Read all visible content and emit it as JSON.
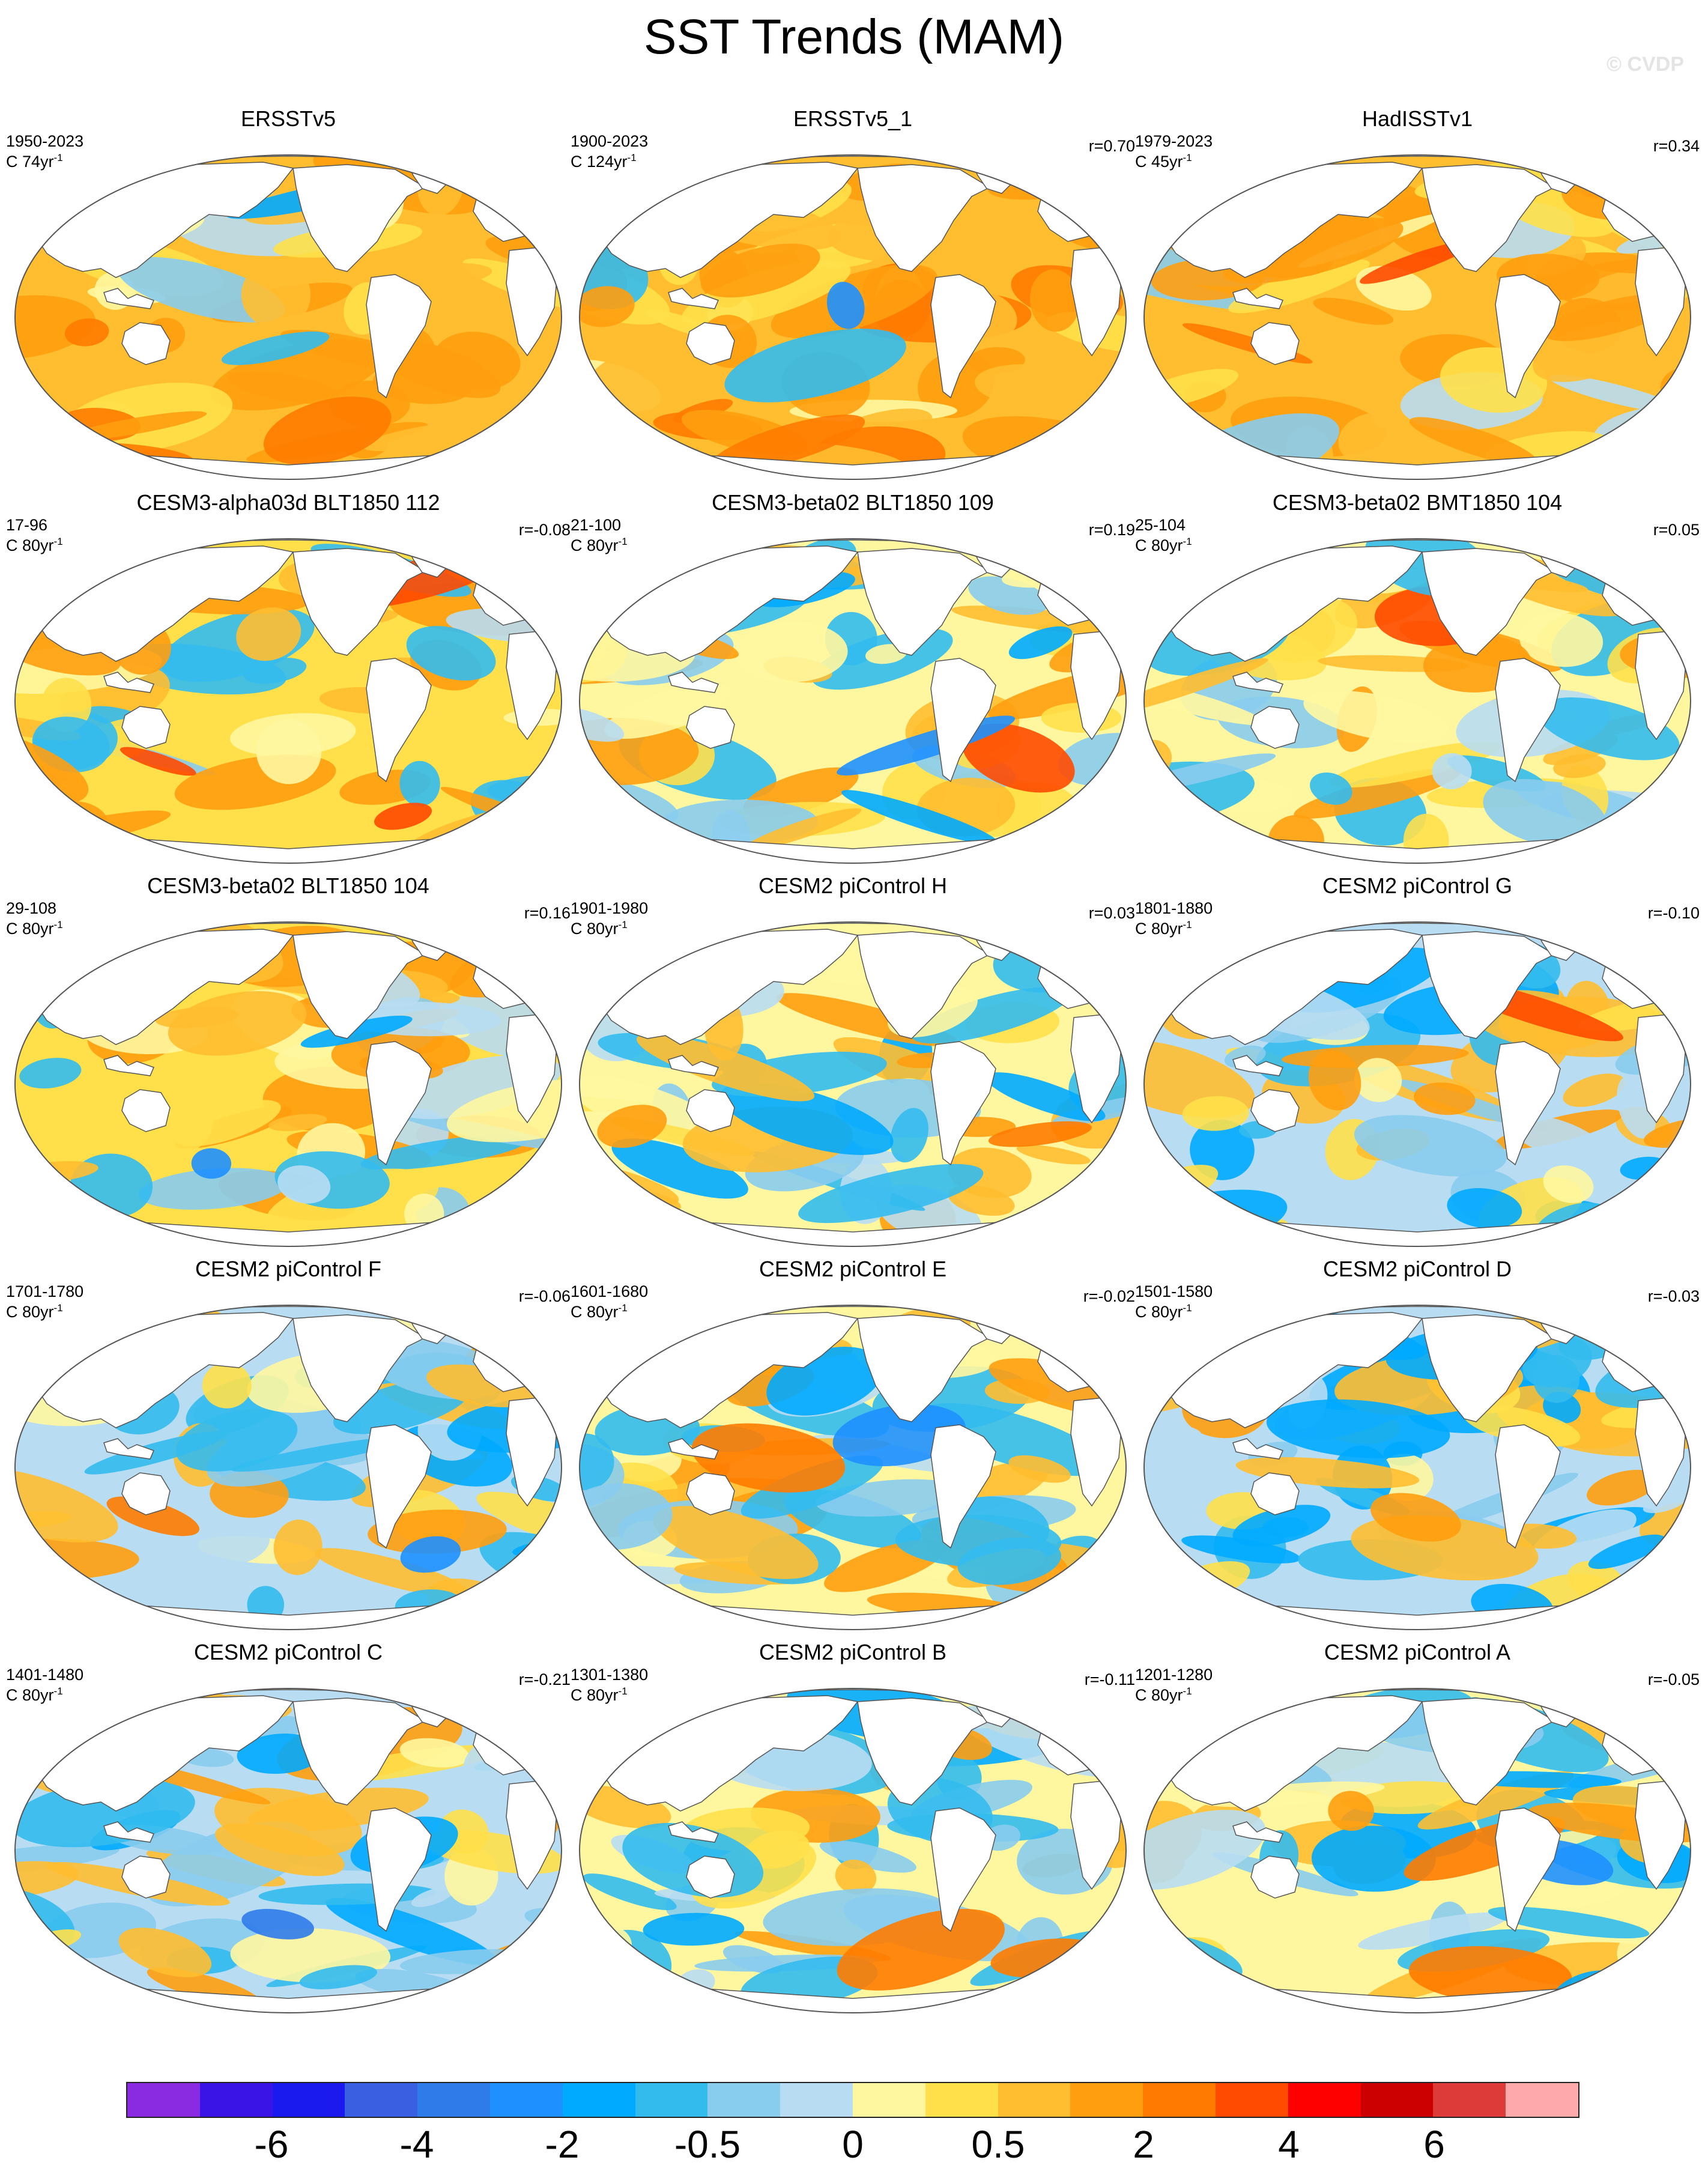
{
  "figure": {
    "title": "SST Trends (MAM)",
    "watermark": "© CVDP"
  },
  "panels": [
    {
      "title": "ERSSTv5",
      "period": "1950-2023",
      "rate": "C 74yr",
      "rate_sup": "-1",
      "corr": "",
      "bias": 0.95,
      "seed": 3
    },
    {
      "title": "ERSSTv5_1",
      "period": "1900-2023",
      "rate": "C 124yr",
      "rate_sup": "-1",
      "corr": "r=0.70",
      "bias": 1.05,
      "seed": 7
    },
    {
      "title": "HadISSTv1",
      "period": "1979-2023",
      "rate": "C 45yr",
      "rate_sup": "-1",
      "corr": "r=0.34",
      "bias": 0.7,
      "seed": 11
    },
    {
      "title": "CESM3-alpha03d BLT1850 112",
      "period": "17-96",
      "rate": "C 80yr",
      "rate_sup": "-1",
      "corr": "r=-0.08",
      "bias": 0.25,
      "seed": 13
    },
    {
      "title": "CESM3-beta02 BLT1850 109",
      "period": "21-100",
      "rate": "C 80yr",
      "rate_sup": "-1",
      "corr": "r=0.19",
      "bias": 0.05,
      "seed": 17
    },
    {
      "title": "CESM3-beta02 BMT1850 104",
      "period": "25-104",
      "rate": "C 80yr",
      "rate_sup": "-1",
      "corr": "r=0.05",
      "bias": 0.1,
      "seed": 19
    },
    {
      "title": "CESM3-beta02 BLT1850 104",
      "period": "29-108",
      "rate": "C 80yr",
      "rate_sup": "-1",
      "corr": "r=0.16",
      "bias": 0.35,
      "seed": 23
    },
    {
      "title": "CESM2 piControl H",
      "period": "1901-1980",
      "rate": "C 80yr",
      "rate_sup": "-1",
      "corr": "r=0.03",
      "bias": 0.0,
      "seed": 29
    },
    {
      "title": "CESM2 piControl G",
      "period": "1801-1880",
      "rate": "C 80yr",
      "rate_sup": "-1",
      "corr": "r=-0.10",
      "bias": -0.02,
      "seed": 31
    },
    {
      "title": "CESM2 piControl F",
      "period": "1701-1780",
      "rate": "C 80yr",
      "rate_sup": "-1",
      "corr": "r=-0.06",
      "bias": -0.05,
      "seed": 37
    },
    {
      "title": "CESM2 piControl E",
      "period": "1601-1680",
      "rate": "C 80yr",
      "rate_sup": "-1",
      "corr": "r=-0.02",
      "bias": 0.0,
      "seed": 41
    },
    {
      "title": "CESM2 piControl D",
      "period": "1501-1580",
      "rate": "C 80yr",
      "rate_sup": "-1",
      "corr": "r=-0.03",
      "bias": -0.02,
      "seed": 43
    },
    {
      "title": "CESM2 piControl C",
      "period": "1401-1480",
      "rate": "C 80yr",
      "rate_sup": "-1",
      "corr": "r=-0.21",
      "bias": -0.03,
      "seed": 47
    },
    {
      "title": "CESM2 piControl B",
      "period": "1301-1380",
      "rate": "C 80yr",
      "rate_sup": "-1",
      "corr": "r=-0.11",
      "bias": 0.02,
      "seed": 53
    },
    {
      "title": "CESM2 piControl A",
      "period": "1201-1280",
      "rate": "C 80yr",
      "rate_sup": "-1",
      "corr": "r=-0.05",
      "bias": 0.03,
      "seed": 59
    }
  ],
  "colorbar": {
    "colors": [
      "#8a2be2",
      "#3a13e6",
      "#1a1aee",
      "#3a5fe0",
      "#2f7bea",
      "#1e90ff",
      "#00aaff",
      "#33bbee",
      "#88ccee",
      "#b8ddf2",
      "#fff7a0",
      "#ffe04a",
      "#ffbe30",
      "#ff9f10",
      "#ff7b00",
      "#ff4a00",
      "#ff0000",
      "#cc0000",
      "#dd3a3a",
      "#ffaaaa"
    ],
    "labels": [
      {
        "text": "-6",
        "boundary": 2
      },
      {
        "text": "-4",
        "boundary": 4
      },
      {
        "text": "-2",
        "boundary": 6
      },
      {
        "text": "-0.5",
        "boundary": 8
      },
      {
        "text": "0",
        "boundary": 10
      },
      {
        "text": "0.5",
        "boundary": 12
      },
      {
        "text": "2",
        "boundary": 14
      },
      {
        "text": "4",
        "boundary": 16
      },
      {
        "text": "6",
        "boundary": 18
      }
    ]
  }
}
